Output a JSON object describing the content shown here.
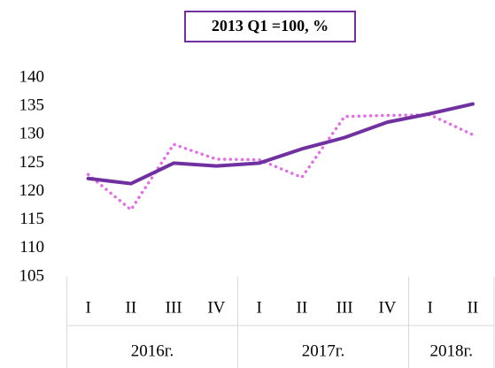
{
  "chart_data": {
    "type": "line",
    "title": "2013 Q1 =100, %",
    "groups": [
      {
        "label": "2016г.",
        "categories": [
          "I",
          "II",
          "III",
          "IV"
        ]
      },
      {
        "label": "2017г.",
        "categories": [
          "I",
          "II",
          "III",
          "IV"
        ]
      },
      {
        "label": "2018г.",
        "categories": [
          "I",
          "II"
        ]
      }
    ],
    "series": [
      {
        "color": "#7030a0",
        "style": "solid",
        "values": [
          122.3,
          121.4,
          125,
          124.5,
          125,
          127.5,
          129.5,
          132.2,
          133.7,
          135.4
        ]
      },
      {
        "color": "#e46ee6",
        "style": "dotted",
        "values": [
          123,
          116.8,
          128.3,
          125.7,
          125.6,
          122.5,
          133.2,
          133.4,
          133.5,
          130
        ]
      }
    ],
    "ylim": [
      105,
      140
    ],
    "yticks": [
      105,
      110,
      115,
      120,
      125,
      130,
      135,
      140
    ],
    "grid": false
  }
}
